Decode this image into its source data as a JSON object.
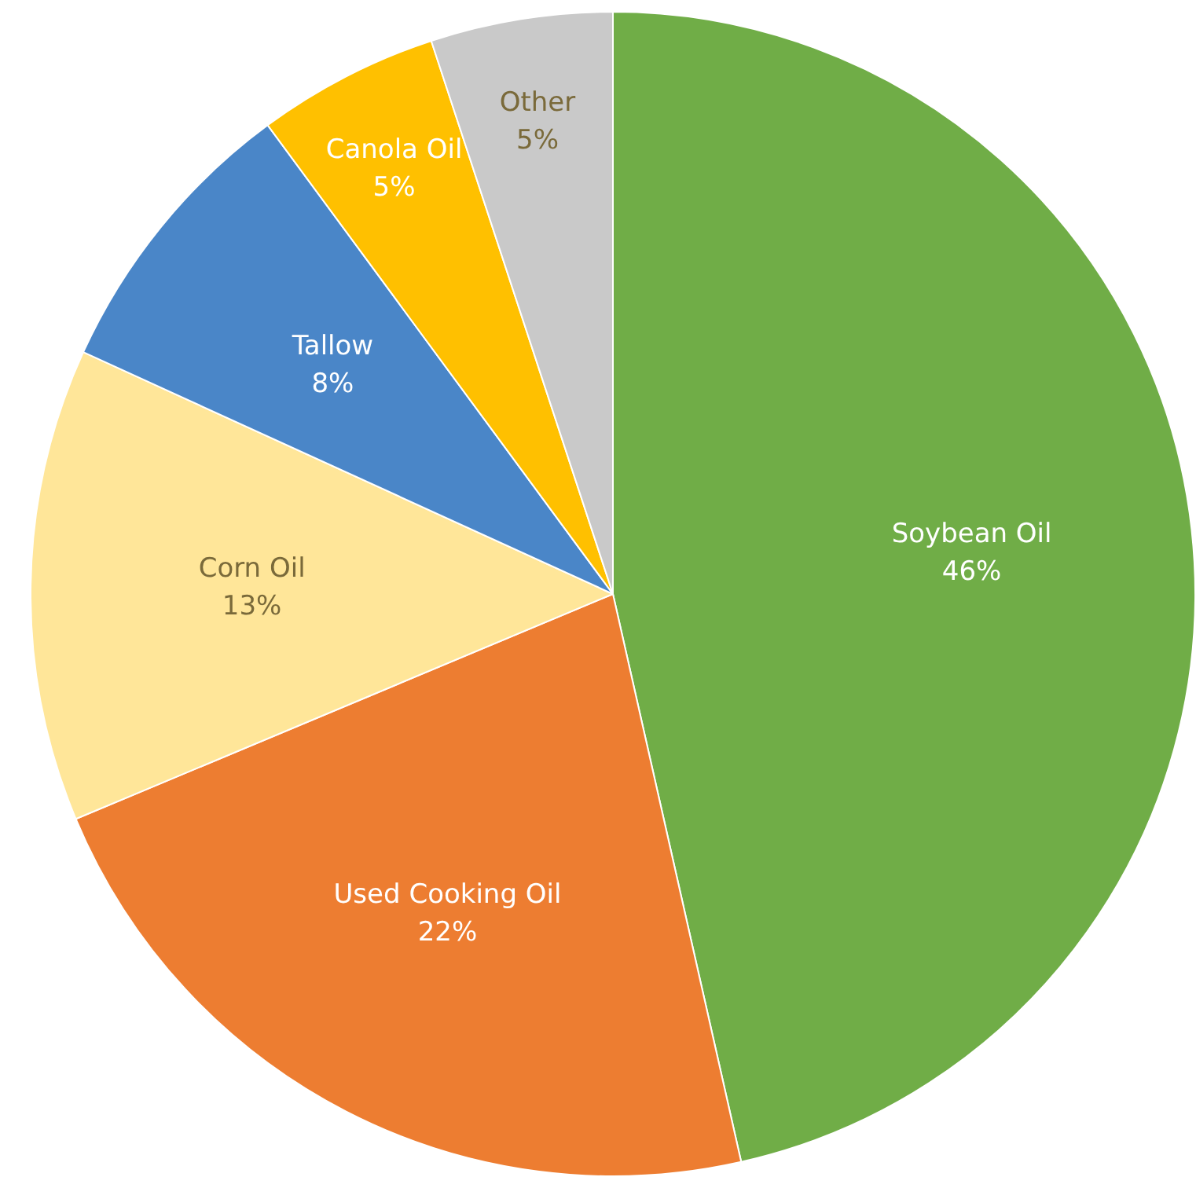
{
  "chart_data": {
    "type": "pie",
    "categories": [
      "Soybean Oil",
      "Used Cooking Oil",
      "Corn Oil",
      "Tallow",
      "Canola Oil",
      "Other"
    ],
    "values": [
      46,
      22,
      13,
      8,
      5,
      5
    ],
    "value_labels": [
      "46%",
      "22%",
      "13%",
      "8%",
      "5%",
      "5%"
    ],
    "colors": [
      "#70ad47",
      "#ed7d31",
      "#ffe699",
      "#4a86c8",
      "#ffc000",
      "#c9c9c9"
    ],
    "legend": false
  }
}
